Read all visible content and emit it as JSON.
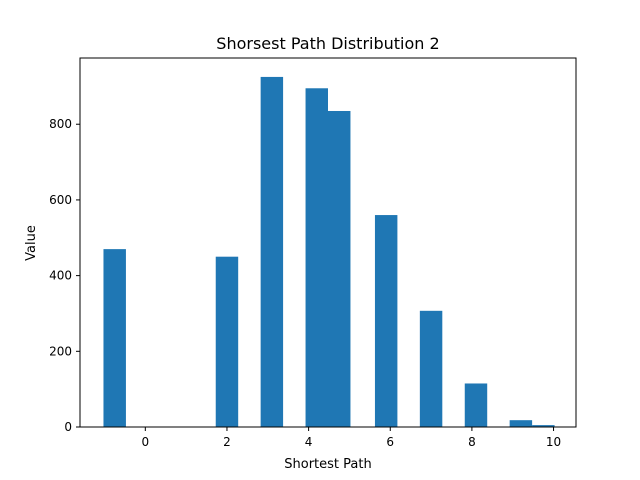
{
  "chart_data": {
    "type": "bar",
    "title": "Shorsest Path Distribution 2",
    "xlabel": "Shortest Path",
    "ylabel": "Value",
    "x": [
      -0.75,
      2,
      3.1,
      4.2,
      4.75,
      5.9,
      7,
      8.1,
      9.2,
      9.75
    ],
    "values": [
      470,
      450,
      925,
      895,
      835,
      560,
      307,
      115,
      18,
      5
    ],
    "bar_width": 0.55,
    "xlim": [
      -1.6,
      10.55
    ],
    "ylim": [
      0,
      975
    ],
    "xticks": [
      0,
      2,
      4,
      6,
      8,
      10
    ],
    "yticks": [
      0,
      200,
      400,
      600,
      800
    ],
    "bar_color": "#1f77b4",
    "grid": false
  }
}
